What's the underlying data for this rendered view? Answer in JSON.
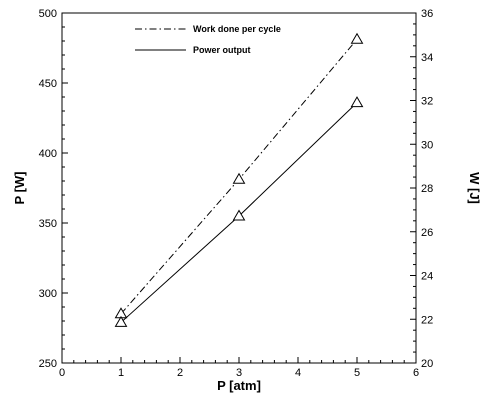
{
  "chart_data": {
    "type": "line",
    "xlabel": "P [atm]",
    "ylabel_left": "P [W]",
    "ylabel_right": "W [J]",
    "xlim": [
      0,
      6
    ],
    "ylim_left": [
      250,
      500
    ],
    "ylim_right": [
      20,
      36
    ],
    "xticks": [
      "0",
      "1",
      "2",
      "3",
      "4",
      "5",
      "6"
    ],
    "yticks_left": [
      "250",
      "300",
      "350",
      "400",
      "450",
      "500"
    ],
    "yticks_right": [
      "20",
      "22",
      "24",
      "26",
      "28",
      "30",
      "32",
      "34",
      "36"
    ],
    "grid": false,
    "legend_position": "top-left",
    "series": [
      {
        "name": "Work done per cycle",
        "axis": "right",
        "line_style": "dash-dot",
        "marker": "triangle",
        "x": [
          1,
          3,
          5
        ],
        "y": [
          22.25,
          28.4,
          34.8
        ]
      },
      {
        "name": "Power output",
        "axis": "left",
        "line_style": "solid",
        "marker": "triangle",
        "x": [
          1,
          3,
          5
        ],
        "y": [
          279,
          355,
          436
        ]
      }
    ]
  }
}
